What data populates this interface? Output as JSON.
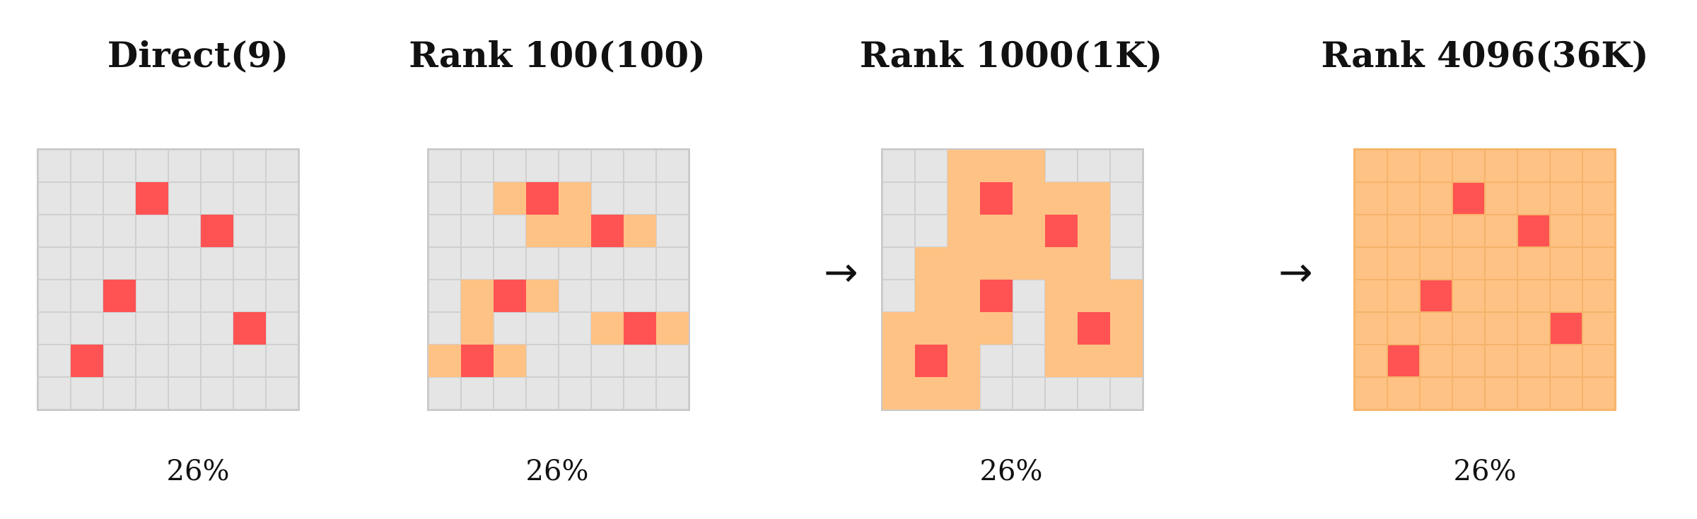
{
  "colors": {
    "empty": "#e5e5e5",
    "grid_line": "#cfcfcf",
    "fill": "#ffc285",
    "key": "#ff5252"
  },
  "arrow_icon": "right-arrow-icon",
  "arrow_symbol": "→",
  "grid_size": [
    8,
    8
  ],
  "cell_legend": {
    "0": "empty",
    "1": "fill",
    "2": "key"
  },
  "panels": [
    {
      "title": "Direct(9)",
      "percent": "26%",
      "style": "plain",
      "grid": [
        [
          0,
          0,
          0,
          0,
          0,
          0,
          0,
          0
        ],
        [
          0,
          0,
          0,
          2,
          0,
          0,
          0,
          0
        ],
        [
          0,
          0,
          0,
          0,
          0,
          2,
          0,
          0
        ],
        [
          0,
          0,
          0,
          0,
          0,
          0,
          0,
          0
        ],
        [
          0,
          0,
          2,
          0,
          0,
          0,
          0,
          0
        ],
        [
          0,
          0,
          0,
          0,
          0,
          0,
          2,
          0
        ],
        [
          0,
          2,
          0,
          0,
          0,
          0,
          0,
          0
        ],
        [
          0,
          0,
          0,
          0,
          0,
          0,
          0,
          0
        ]
      ]
    },
    {
      "title": "Rank 100(100)",
      "percent": "26%",
      "style": "plain",
      "grid": [
        [
          0,
          0,
          0,
          0,
          0,
          0,
          0,
          0
        ],
        [
          0,
          0,
          1,
          2,
          1,
          0,
          0,
          0
        ],
        [
          0,
          0,
          0,
          1,
          1,
          2,
          1,
          0
        ],
        [
          0,
          0,
          0,
          0,
          0,
          0,
          0,
          0
        ],
        [
          0,
          1,
          2,
          1,
          0,
          0,
          0,
          0
        ],
        [
          0,
          1,
          0,
          0,
          0,
          1,
          2,
          1
        ],
        [
          1,
          2,
          1,
          0,
          0,
          0,
          0,
          0
        ],
        [
          0,
          0,
          0,
          0,
          0,
          0,
          0,
          0
        ]
      ]
    },
    {
      "title": "Rank 1000(1K)",
      "percent": "26%",
      "style": "plain",
      "grid": [
        [
          0,
          0,
          1,
          1,
          1,
          0,
          0,
          0
        ],
        [
          0,
          0,
          1,
          2,
          1,
          1,
          1,
          0
        ],
        [
          0,
          0,
          1,
          1,
          1,
          2,
          1,
          0
        ],
        [
          0,
          1,
          1,
          1,
          1,
          1,
          1,
          0
        ],
        [
          0,
          1,
          1,
          2,
          0,
          1,
          1,
          1
        ],
        [
          1,
          1,
          1,
          1,
          0,
          1,
          2,
          1
        ],
        [
          1,
          2,
          1,
          0,
          0,
          1,
          1,
          1
        ],
        [
          1,
          1,
          1,
          0,
          0,
          0,
          0,
          0
        ]
      ]
    },
    {
      "title": "Rank 4096(36K)",
      "percent": "26%",
      "style": "full",
      "grid": [
        [
          1,
          1,
          1,
          1,
          1,
          1,
          1,
          1
        ],
        [
          1,
          1,
          1,
          2,
          1,
          1,
          1,
          1
        ],
        [
          1,
          1,
          1,
          1,
          1,
          2,
          1,
          1
        ],
        [
          1,
          1,
          1,
          1,
          1,
          1,
          1,
          1
        ],
        [
          1,
          1,
          2,
          1,
          1,
          1,
          1,
          1
        ],
        [
          1,
          1,
          1,
          1,
          1,
          1,
          2,
          1
        ],
        [
          1,
          2,
          1,
          1,
          1,
          1,
          1,
          1
        ],
        [
          1,
          1,
          1,
          1,
          1,
          1,
          1,
          1
        ]
      ]
    }
  ]
}
